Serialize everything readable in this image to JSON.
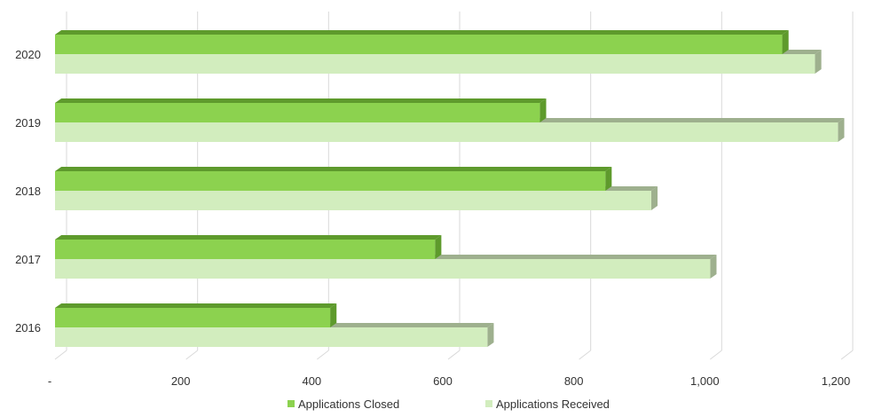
{
  "chart_data": {
    "type": "bar",
    "orientation": "horizontal",
    "style": "3d",
    "categories": [
      "2020",
      "2019",
      "2018",
      "2017",
      "2016"
    ],
    "series": [
      {
        "name": "Applications Closed",
        "values": [
          1110,
          740,
          840,
          580,
          420
        ],
        "color": "#8cd24f",
        "edge_color": "#5e9a2c"
      },
      {
        "name": "Applications Received",
        "values": [
          1160,
          1195,
          910,
          1000,
          660
        ],
        "color": "#d2edbe",
        "edge_color": "#9eb08e"
      }
    ],
    "xlim": [
      0,
      1200
    ],
    "x_ticks": [
      {
        "value": 0,
        "label": "-"
      },
      {
        "value": 200,
        "label": "200"
      },
      {
        "value": 400,
        "label": "400"
      },
      {
        "value": 600,
        "label": "600"
      },
      {
        "value": 800,
        "label": "800"
      },
      {
        "value": 1000,
        "label": "1,000"
      },
      {
        "value": 1200,
        "label": "1,200"
      }
    ],
    "grid": true,
    "legend_position": "bottom",
    "title": "",
    "xlabel": "",
    "ylabel": ""
  }
}
